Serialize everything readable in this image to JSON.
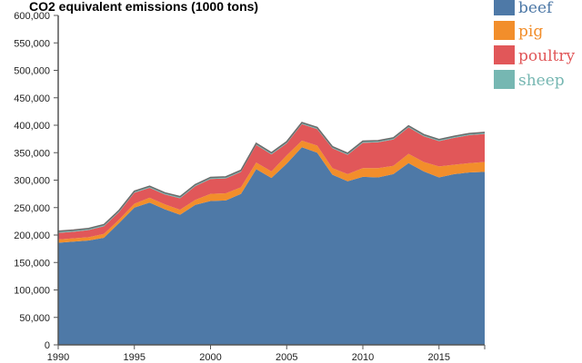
{
  "chart_data": {
    "type": "area",
    "stacked": true,
    "title": "CO2 equivalent emissions (1000 tons)",
    "xlabel": "",
    "ylabel": "",
    "xlim": [
      1990,
      2018
    ],
    "ylim": [
      0,
      600000
    ],
    "x_ticks": [
      "1990",
      "1995",
      "2000",
      "2005",
      "2010",
      "2015"
    ],
    "y_ticks": [
      "0",
      "50,000",
      "100,000",
      "150,000",
      "200,000",
      "250,000",
      "300,000",
      "350,000",
      "400,000",
      "450,000",
      "500,000",
      "550,000",
      "600,000"
    ],
    "legend_position": "top-right",
    "grid": false,
    "x": [
      1990,
      1991,
      1992,
      1993,
      1994,
      1995,
      1996,
      1997,
      1998,
      1999,
      2000,
      2001,
      2002,
      2003,
      2004,
      2005,
      2006,
      2007,
      2008,
      2009,
      2010,
      2011,
      2012,
      2013,
      2014,
      2015,
      2016,
      2017,
      2018
    ],
    "series": [
      {
        "name": "beef",
        "color": "#4e79a7",
        "values": [
          186000,
          188000,
          190000,
          195000,
          222000,
          250000,
          259000,
          247000,
          237000,
          255000,
          262000,
          263000,
          275000,
          320000,
          304000,
          330000,
          360000,
          350000,
          310000,
          298000,
          306000,
          305000,
          311000,
          331000,
          316000,
          305000,
          311000,
          314000,
          315000
        ]
      },
      {
        "name": "pig",
        "color": "#f28e2b",
        "values": [
          6000,
          6000,
          6000,
          7000,
          6000,
          7000,
          9000,
          9000,
          9000,
          9000,
          13000,
          13000,
          12000,
          12000,
          12000,
          15000,
          12000,
          13000,
          12000,
          13000,
          16000,
          17000,
          15000,
          17000,
          17000,
          20000,
          17000,
          17000,
          18000
        ]
      },
      {
        "name": "poultry",
        "color": "#e15759",
        "values": [
          12000,
          12000,
          13000,
          14000,
          14000,
          20000,
          18000,
          18000,
          21000,
          25000,
          27000,
          27000,
          28000,
          32000,
          31000,
          22000,
          30000,
          30000,
          36000,
          35000,
          46000,
          47000,
          48000,
          48000,
          47000,
          46000,
          49000,
          51000,
          51000
        ]
      },
      {
        "name": "sheep",
        "color": "#76b7b2",
        "values": [
          3000,
          3000,
          3000,
          3000,
          3000,
          3000,
          3000,
          3000,
          3000,
          3000,
          3000,
          3000,
          3000,
          3000,
          3000,
          3000,
          3000,
          3000,
          3000,
          3000,
          3000,
          3000,
          3000,
          3000,
          3000,
          3000,
          3000,
          3000,
          3000
        ]
      }
    ]
  }
}
